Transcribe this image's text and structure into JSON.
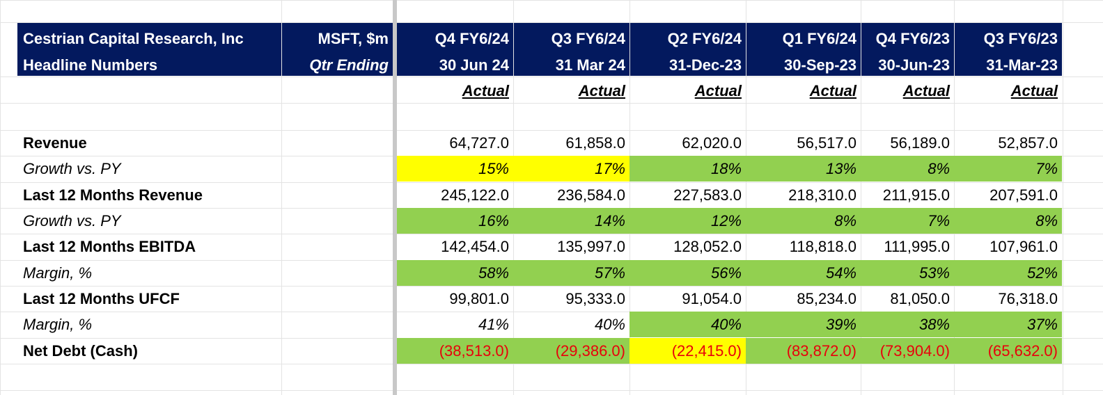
{
  "colors": {
    "header_bg": "#03195e",
    "green_fill": "#92d050",
    "yellow_fill": "#ffff00",
    "negative_text": "#e8000b"
  },
  "header": {
    "company": "Cestrian Capital Research, Inc",
    "subtitle": "Headline Numbers",
    "ticker": "MSFT, $m",
    "qtr_label": "Qtr Ending"
  },
  "columns": [
    {
      "quarter": "Q4 FY6/24",
      "date": "30 Jun 24",
      "status": "Actual"
    },
    {
      "quarter": "Q3 FY6/24",
      "date": "31 Mar 24",
      "status": "Actual"
    },
    {
      "quarter": "Q2 FY6/24",
      "date": "31-Dec-23",
      "status": "Actual"
    },
    {
      "quarter": "Q1 FY6/24",
      "date": "30-Sep-23",
      "status": "Actual"
    },
    {
      "quarter": "Q4 FY6/23",
      "date": "30-Jun-23",
      "status": "Actual"
    },
    {
      "quarter": "Q3 FY6/23",
      "date": "31-Mar-23",
      "status": "Actual"
    }
  ],
  "rows": [
    {
      "label": "Revenue",
      "style": "bold",
      "values": [
        "64,727.0",
        "61,858.0",
        "62,020.0",
        "56,517.0",
        "56,189.0",
        "52,857.0"
      ],
      "fills": [
        "none",
        "none",
        "none",
        "none",
        "none",
        "none"
      ]
    },
    {
      "label": "Growth vs. PY",
      "style": "italic",
      "values": [
        "15%",
        "17%",
        "18%",
        "13%",
        "8%",
        "7%"
      ],
      "fills": [
        "yellow",
        "yellow",
        "green",
        "green",
        "green",
        "green"
      ]
    },
    {
      "label": "Last 12 Months Revenue",
      "style": "bold",
      "values": [
        "245,122.0",
        "236,584.0",
        "227,583.0",
        "218,310.0",
        "211,915.0",
        "207,591.0"
      ],
      "fills": [
        "none",
        "none",
        "none",
        "none",
        "none",
        "none"
      ]
    },
    {
      "label": "Growth vs. PY",
      "style": "italic",
      "values": [
        "16%",
        "14%",
        "12%",
        "8%",
        "7%",
        "8%"
      ],
      "fills": [
        "green",
        "green",
        "green",
        "green",
        "green",
        "green"
      ]
    },
    {
      "label": "Last 12 Months EBITDA",
      "style": "bold",
      "values": [
        "142,454.0",
        "135,997.0",
        "128,052.0",
        "118,818.0",
        "111,995.0",
        "107,961.0"
      ],
      "fills": [
        "none",
        "none",
        "none",
        "none",
        "none",
        "none"
      ]
    },
    {
      "label": "Margin, %",
      "style": "italic",
      "values": [
        "58%",
        "57%",
        "56%",
        "54%",
        "53%",
        "52%"
      ],
      "fills": [
        "green",
        "green",
        "green",
        "green",
        "green",
        "green"
      ]
    },
    {
      "label": "Last 12 Months UFCF",
      "style": "bold",
      "values": [
        "99,801.0",
        "95,333.0",
        "91,054.0",
        "85,234.0",
        "81,050.0",
        "76,318.0"
      ],
      "fills": [
        "none",
        "none",
        "none",
        "none",
        "none",
        "none"
      ]
    },
    {
      "label": "Margin, %",
      "style": "italic",
      "values": [
        "41%",
        "40%",
        "40%",
        "39%",
        "38%",
        "37%"
      ],
      "fills": [
        "none",
        "none",
        "green",
        "green",
        "green",
        "green"
      ]
    },
    {
      "label": "Net Debt (Cash)",
      "style": "bold",
      "negative": true,
      "values": [
        "(38,513.0)",
        "(29,386.0)",
        "(22,415.0)",
        "(83,872.0)",
        "(73,904.0)",
        "(65,632.0)"
      ],
      "fills": [
        "green",
        "green",
        "yellow",
        "green",
        "green",
        "green"
      ]
    }
  ]
}
